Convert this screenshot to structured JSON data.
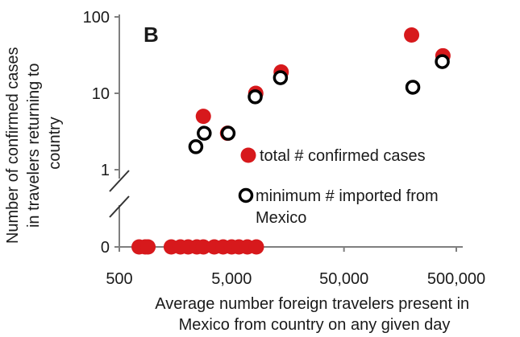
{
  "chart_data": {
    "type": "scatter",
    "panel_label": "B",
    "xlabel": [
      "Average number foreign travelers present in",
      "Mexico from country on any given day"
    ],
    "ylabel": [
      "Number of confirmed cases",
      "in travelers returning to",
      "country"
    ],
    "x_scale": "log",
    "y_scale": "log-with-break",
    "xlim": [
      500,
      500000
    ],
    "x_ticks": [
      500,
      5000,
      50000,
      500000
    ],
    "x_tick_labels": [
      "500",
      "5,000",
      "50,000",
      "500,000"
    ],
    "y_ticks": [
      0,
      1,
      10,
      100
    ],
    "y_tick_labels": [
      "0",
      "1",
      "10",
      "100"
    ],
    "grid": false,
    "legend_position": "middle-right",
    "series": [
      {
        "name": "total # confirmed cases",
        "marker": "filled-circle",
        "color": "#d7191c",
        "points": [
          {
            "x": 2800,
            "y": 5
          },
          {
            "x": 4600,
            "y": 3
          },
          {
            "x": 8200,
            "y": 10
          },
          {
            "x": 13800,
            "y": 19
          },
          {
            "x": 200000,
            "y": 58
          },
          {
            "x": 380000,
            "y": 31
          },
          {
            "x": 750,
            "y": 0
          },
          {
            "x": 850,
            "y": 0
          },
          {
            "x": 900,
            "y": 0
          },
          {
            "x": 1450,
            "y": 0
          },
          {
            "x": 1750,
            "y": 0
          },
          {
            "x": 2050,
            "y": 0
          },
          {
            "x": 2450,
            "y": 0
          },
          {
            "x": 2800,
            "y": 0
          },
          {
            "x": 3500,
            "y": 0
          },
          {
            "x": 4200,
            "y": 0
          },
          {
            "x": 5000,
            "y": 0
          },
          {
            "x": 5800,
            "y": 0
          },
          {
            "x": 6900,
            "y": 0
          },
          {
            "x": 8300,
            "y": 0
          }
        ]
      },
      {
        "name": "minimum # imported from Mexico",
        "marker": "open-circle",
        "color": "#000000",
        "points": [
          {
            "x": 2400,
            "y": 2
          },
          {
            "x": 2850,
            "y": 3
          },
          {
            "x": 4650,
            "y": 3
          },
          {
            "x": 8100,
            "y": 9
          },
          {
            "x": 13600,
            "y": 16
          },
          {
            "x": 205000,
            "y": 12
          },
          {
            "x": 375000,
            "y": 26
          }
        ]
      }
    ],
    "legend": [
      {
        "label": "total # confirmed cases",
        "marker": "filled-circle"
      },
      {
        "label": "minimum # imported from Mexico",
        "marker": "open-circle"
      }
    ],
    "colors": {
      "filled": "#d7191c",
      "open_stroke": "#000000",
      "axis": "#7f7f7f",
      "text": "#1a1a1a"
    }
  }
}
